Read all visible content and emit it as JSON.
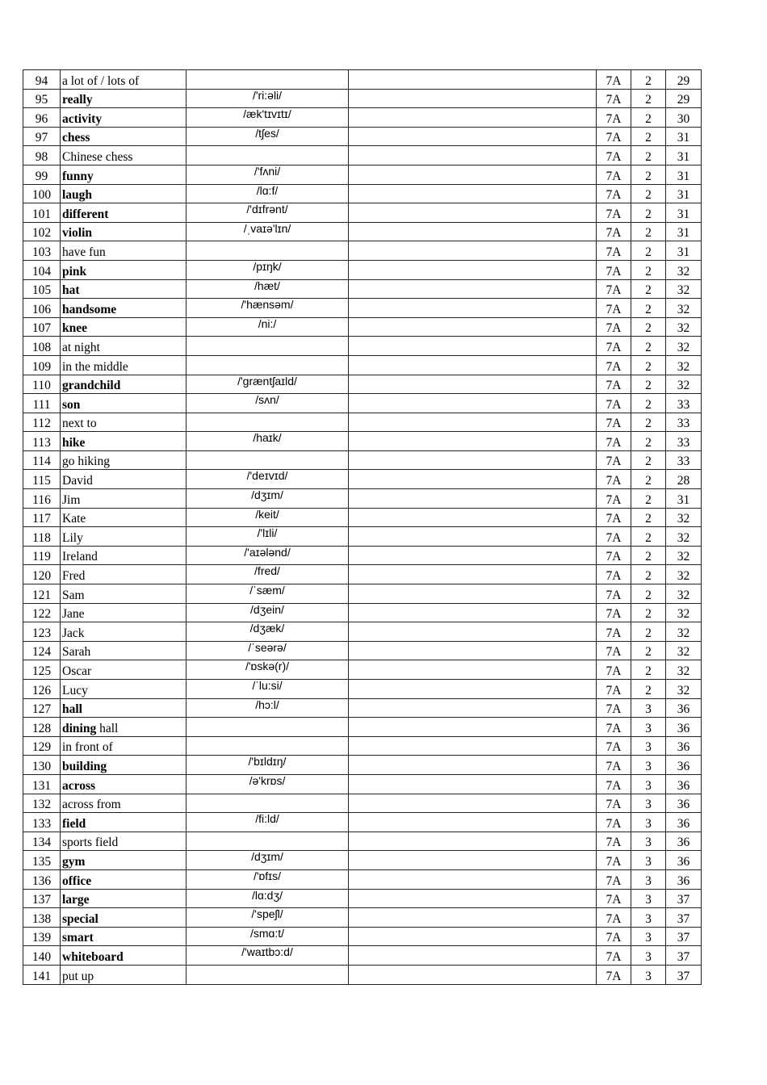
{
  "rows": [
    {
      "n": "94",
      "b": "",
      "w": "a lot of / lots of",
      "p": "",
      "g": "7A",
      "u": "2",
      "pg": "29"
    },
    {
      "n": "95",
      "b": "really",
      "w": "",
      "p": "/'ri:əli/",
      "g": "7A",
      "u": "2",
      "pg": "29"
    },
    {
      "n": "96",
      "b": "activity",
      "w": "",
      "p": "/æk'tɪvɪtɪ/",
      "g": "7A",
      "u": "2",
      "pg": "30"
    },
    {
      "n": "97",
      "b": "chess",
      "w": "",
      "p": "/tʃes/",
      "g": "7A",
      "u": "2",
      "pg": "31"
    },
    {
      "n": "98",
      "b": "",
      "w": "Chinese chess",
      "p": "",
      "g": "7A",
      "u": "2",
      "pg": "31"
    },
    {
      "n": "99",
      "b": "funny",
      "w": "",
      "p": "/'fʌni/",
      "g": "7A",
      "u": "2",
      "pg": "31"
    },
    {
      "n": "100",
      "b": "laugh",
      "w": "",
      "p": "/lɑ:f/",
      "g": "7A",
      "u": "2",
      "pg": "31"
    },
    {
      "n": "101",
      "b": "different",
      "w": "",
      "p": "/'dɪfrənt/",
      "g": "7A",
      "u": "2",
      "pg": "31"
    },
    {
      "n": "102",
      "b": "violin",
      "w": "",
      "p": "/ˌvaɪə'lɪn/",
      "g": "7A",
      "u": "2",
      "pg": "31"
    },
    {
      "n": "103",
      "b": "",
      "w": "have fun",
      "p": "",
      "g": "7A",
      "u": "2",
      "pg": "31"
    },
    {
      "n": "104",
      "b": "pink",
      "w": "",
      "p": "/pɪŋk/",
      "g": "7A",
      "u": "2",
      "pg": "32"
    },
    {
      "n": "105",
      "b": "hat",
      "w": "",
      "p": "/hæt/",
      "g": "7A",
      "u": "2",
      "pg": "32"
    },
    {
      "n": "106",
      "b": "handsome",
      "w": "",
      "p": "/'hænsəm/",
      "g": "7A",
      "u": "2",
      "pg": "32"
    },
    {
      "n": "107",
      "b": "knee",
      "w": "",
      "p": "/ni:/",
      "g": "7A",
      "u": "2",
      "pg": "32"
    },
    {
      "n": "108",
      "b": "",
      "w": "at night",
      "p": "",
      "g": "7A",
      "u": "2",
      "pg": "32"
    },
    {
      "n": "109",
      "b": "",
      "w": "in the middle",
      "p": "",
      "g": "7A",
      "u": "2",
      "pg": "32"
    },
    {
      "n": "110",
      "b": "grandchild",
      "w": "",
      "p": "/'græntʃaɪld/",
      "g": "7A",
      "u": "2",
      "pg": "32"
    },
    {
      "n": "111",
      "b": "son",
      "w": "",
      "p": "/sʌn/",
      "g": "7A",
      "u": "2",
      "pg": "33"
    },
    {
      "n": "112",
      "b": "",
      "w": "next to",
      "p": "",
      "g": "7A",
      "u": "2",
      "pg": "33"
    },
    {
      "n": "113",
      "b": "hike",
      "w": "",
      "p": "/haɪk/",
      "g": "7A",
      "u": "2",
      "pg": "33"
    },
    {
      "n": "114",
      "b": "",
      "w": "go hiking",
      "p": "",
      "g": "7A",
      "u": "2",
      "pg": "33"
    },
    {
      "n": "115",
      "b": "",
      "w": "David",
      "p": "/'deɪvɪd/",
      "g": "7A",
      "u": "2",
      "pg": "28"
    },
    {
      "n": "116",
      "b": "",
      "w": "Jim",
      "p": "/dʒɪm/",
      "g": "7A",
      "u": "2",
      "pg": "31"
    },
    {
      "n": "117",
      "b": "",
      "w": "Kate",
      "p": "/keit/",
      "g": "7A",
      "u": "2",
      "pg": "32"
    },
    {
      "n": "118",
      "b": "",
      "w": "Lily",
      "p": "/'lɪli/",
      "g": "7A",
      "u": "2",
      "pg": "32"
    },
    {
      "n": "119",
      "b": "",
      "w": "Ireland",
      "p": "/'aɪələnd/",
      "g": "7A",
      "u": "2",
      "pg": "32"
    },
    {
      "n": "120",
      "b": "",
      "w": "Fred",
      "p": "/fred/",
      "g": "7A",
      "u": "2",
      "pg": "32"
    },
    {
      "n": "121",
      "b": "",
      "w": "Sam",
      "p": "/ˈsæm/",
      "g": "7A",
      "u": "2",
      "pg": "32"
    },
    {
      "n": "122",
      "b": "",
      "w": "Jane",
      "p": "/dʒein/",
      "g": "7A",
      "u": "2",
      "pg": "32"
    },
    {
      "n": "123",
      "b": "",
      "w": "Jack",
      "p": "/dʒæk/",
      "g": "7A",
      "u": "2",
      "pg": "32"
    },
    {
      "n": "124",
      "b": "",
      "w": "Sarah",
      "p": "/ˈseərə/",
      "g": "7A",
      "u": "2",
      "pg": "32"
    },
    {
      "n": "125",
      "b": "",
      "w": "Oscar",
      "p": "/'ɒskə(r)/",
      "g": "7A",
      "u": "2",
      "pg": "32"
    },
    {
      "n": "126",
      "b": "",
      "w": "Lucy",
      "p": "/ˈlu:si/",
      "g": "7A",
      "u": "2",
      "pg": "32"
    },
    {
      "n": "127",
      "b": "hall",
      "w": "",
      "p": "/hɔ:l/",
      "g": "7A",
      "u": "3",
      "pg": "36"
    },
    {
      "n": "128",
      "b": "dining",
      "w": " hall",
      "p": "",
      "g": "7A",
      "u": "3",
      "pg": "36"
    },
    {
      "n": "129",
      "b": "",
      "w": "in front of",
      "p": "",
      "g": "7A",
      "u": "3",
      "pg": "36"
    },
    {
      "n": "130",
      "b": "building",
      "w": "",
      "p": "/'bɪldɪŋ/",
      "g": "7A",
      "u": "3",
      "pg": "36"
    },
    {
      "n": "131",
      "b": "across",
      "w": "",
      "p": "/ə'krɒs/",
      "g": "7A",
      "u": "3",
      "pg": "36"
    },
    {
      "n": "132",
      "b": "",
      "w": "across from",
      "p": "",
      "g": "7A",
      "u": "3",
      "pg": "36"
    },
    {
      "n": "133",
      "b": "field",
      "w": "",
      "p": "/fi:ld/",
      "g": "7A",
      "u": "3",
      "pg": "36"
    },
    {
      "n": "134",
      "b": "",
      "w": "sports field",
      "p": "",
      "g": "7A",
      "u": "3",
      "pg": "36"
    },
    {
      "n": "135",
      "b": "gym",
      "w": "",
      "p": "/dʒɪm/",
      "g": "7A",
      "u": "3",
      "pg": "36"
    },
    {
      "n": "136",
      "b": "office",
      "w": "",
      "p": "/'ɒfɪs/",
      "g": "7A",
      "u": "3",
      "pg": "36"
    },
    {
      "n": "137",
      "b": "large",
      "w": "",
      "p": "/lɑ:dʒ/",
      "g": "7A",
      "u": "3",
      "pg": "37"
    },
    {
      "n": "138",
      "b": "special",
      "w": "",
      "p": "/'speʃl/",
      "g": "7A",
      "u": "3",
      "pg": "37"
    },
    {
      "n": "139",
      "b": "smart",
      "w": "",
      "p": "/smɑ:t/",
      "g": "7A",
      "u": "3",
      "pg": "37"
    },
    {
      "n": "140",
      "b": "whiteboard",
      "w": "",
      "p": "/'waɪtbɔ:d/",
      "g": "7A",
      "u": "3",
      "pg": "37"
    },
    {
      "n": "141",
      "b": "",
      "w": "put up",
      "p": "",
      "g": "7A",
      "u": "3",
      "pg": "37"
    }
  ]
}
